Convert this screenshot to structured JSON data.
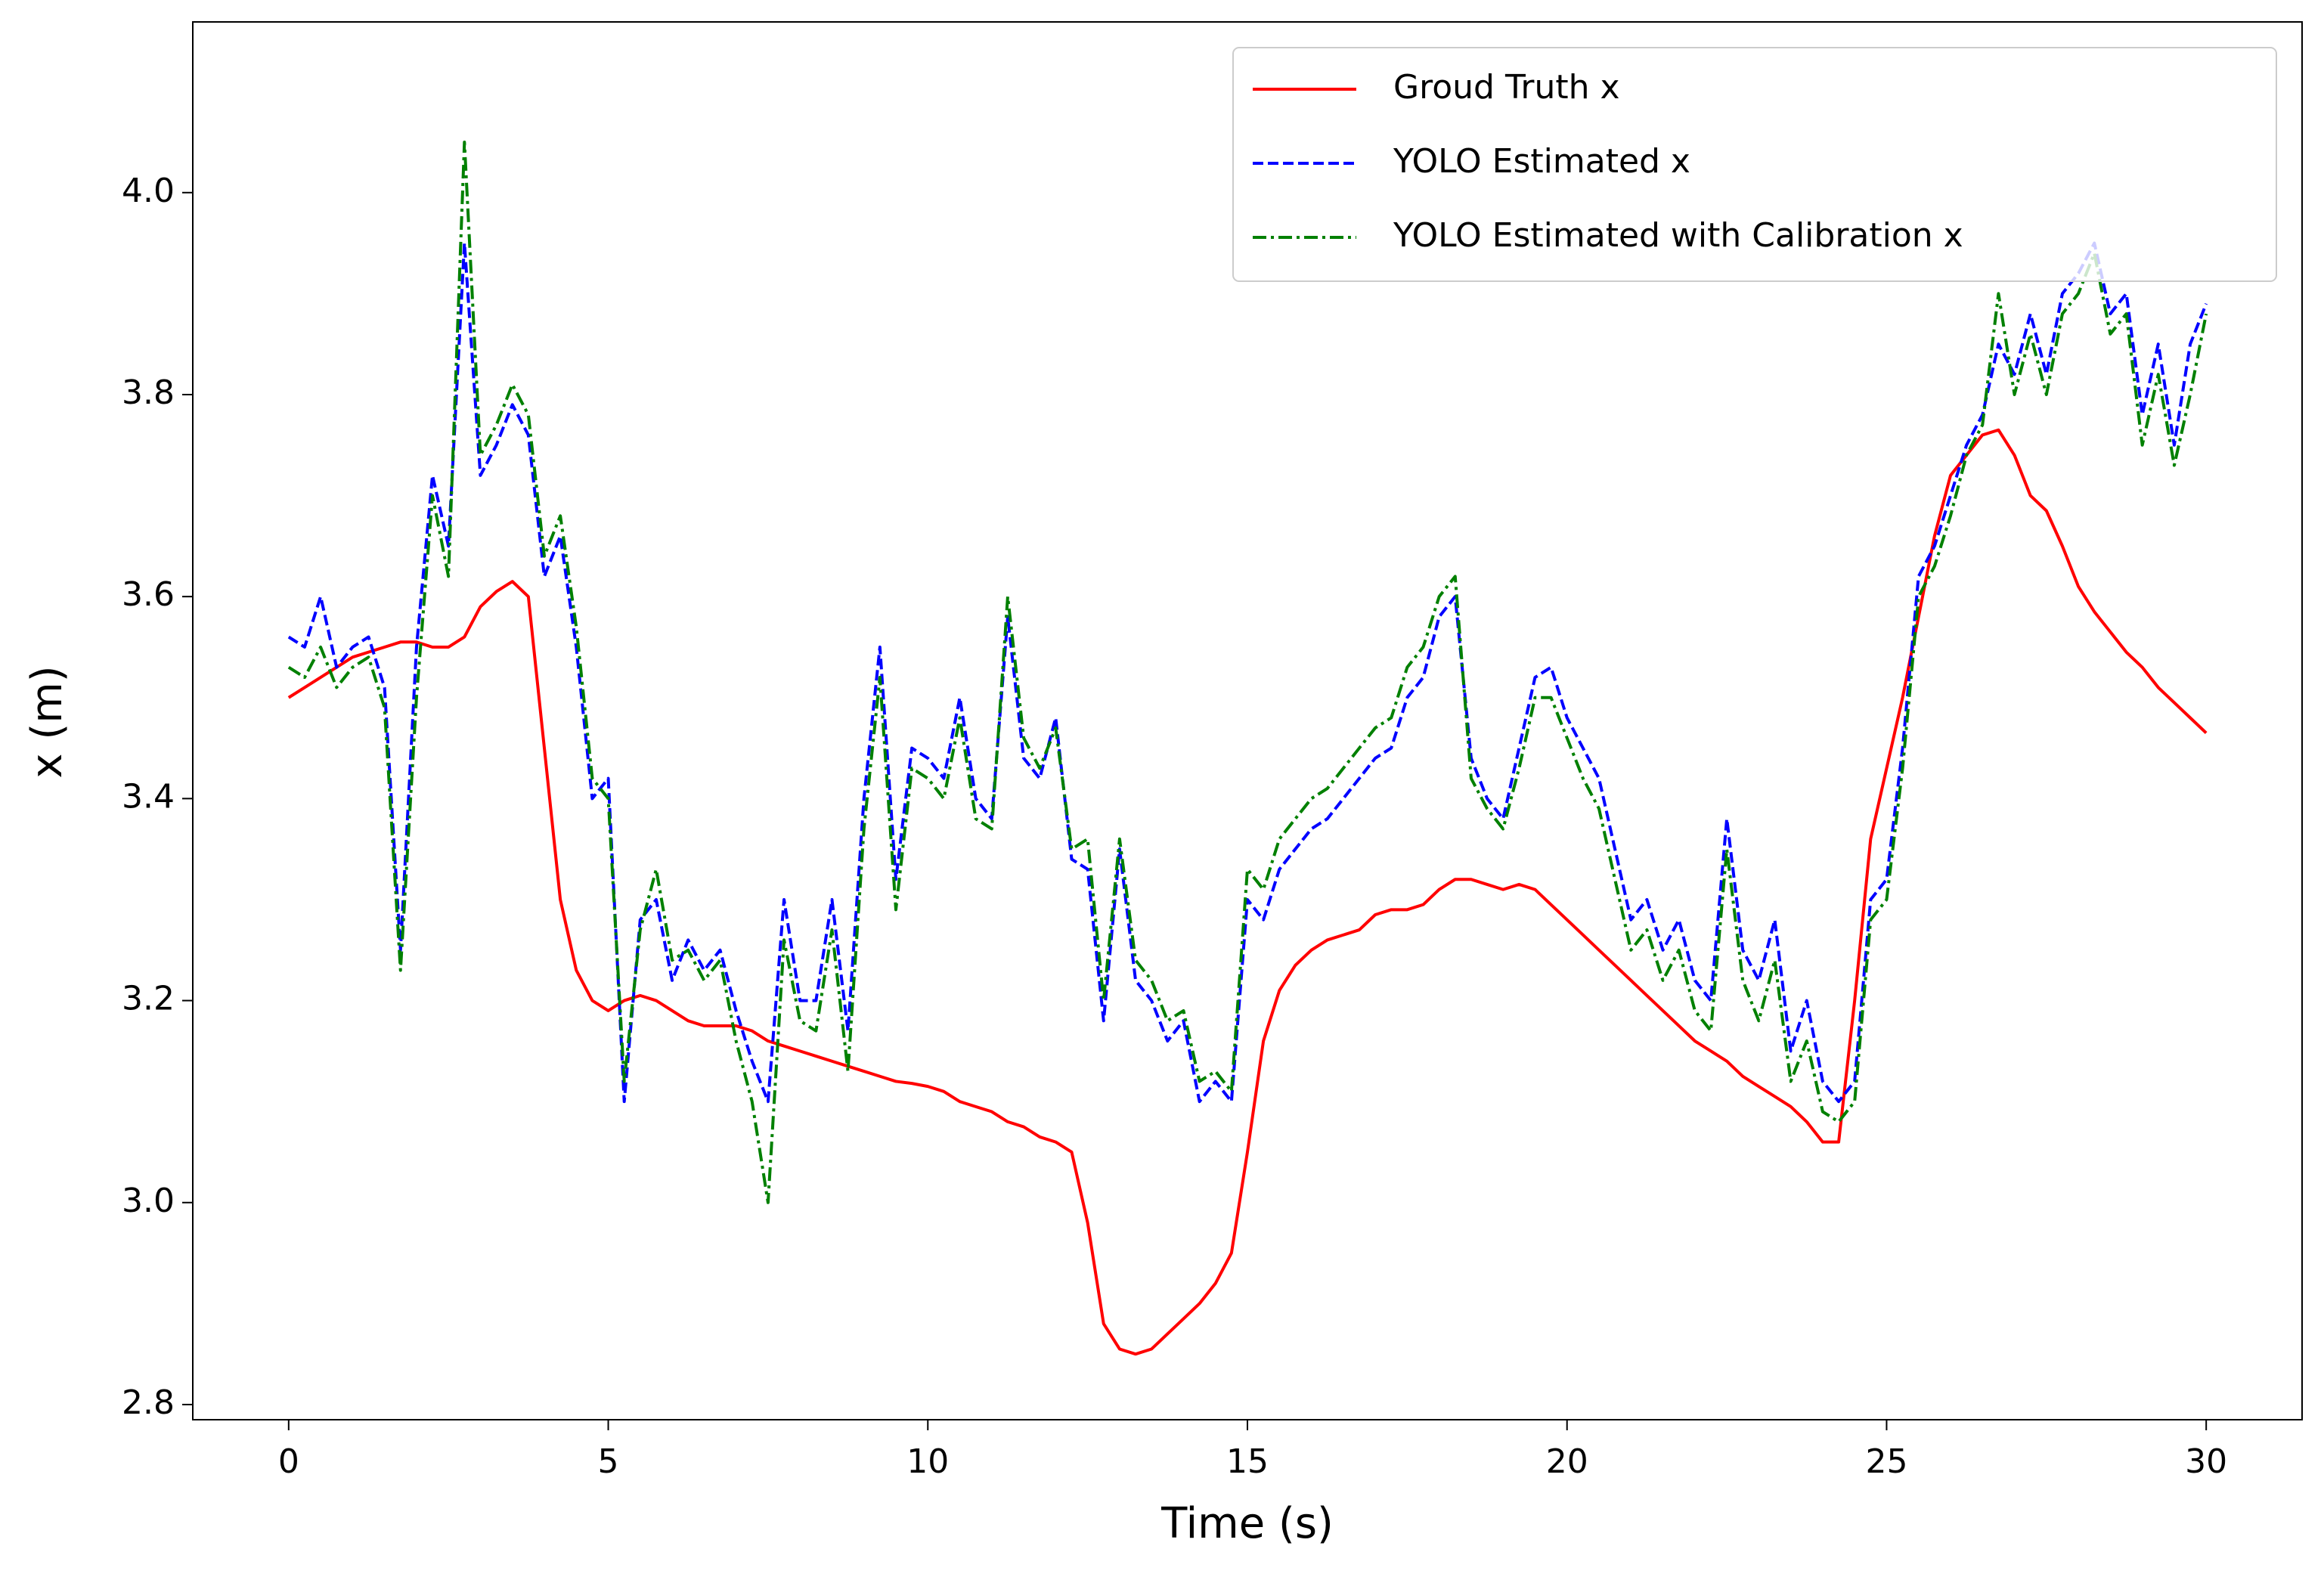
{
  "chart_data": {
    "type": "line",
    "xlabel": "Time (s)",
    "ylabel": "x (m)",
    "x": [
      0,
      0.25,
      0.5,
      0.75,
      1,
      1.25,
      1.5,
      1.75,
      2,
      2.25,
      2.5,
      2.75,
      3,
      3.25,
      3.5,
      3.75,
      4,
      4.25,
      4.5,
      4.75,
      5,
      5.25,
      5.5,
      5.75,
      6,
      6.25,
      6.5,
      6.75,
      7,
      7.25,
      7.5,
      7.75,
      8,
      8.25,
      8.5,
      8.75,
      9,
      9.25,
      9.5,
      9.75,
      10,
      10.25,
      10.5,
      10.75,
      11,
      11.25,
      11.5,
      11.75,
      12,
      12.25,
      12.5,
      12.75,
      13,
      13.25,
      13.5,
      13.75,
      14,
      14.25,
      14.5,
      14.75,
      15,
      15.25,
      15.5,
      15.75,
      16,
      16.25,
      16.5,
      16.75,
      17,
      17.25,
      17.5,
      17.75,
      18,
      18.25,
      18.5,
      18.75,
      19,
      19.25,
      19.5,
      19.75,
      20,
      20.25,
      20.5,
      20.75,
      21,
      21.25,
      21.5,
      21.75,
      22,
      22.25,
      22.5,
      22.75,
      23,
      23.25,
      23.5,
      23.75,
      24,
      24.25,
      24.5,
      24.75,
      25,
      25.25,
      25.5,
      25.75,
      26,
      26.25,
      26.5,
      26.75,
      27,
      27.25,
      27.5,
      27.75,
      28,
      28.25,
      28.5,
      28.75,
      29,
      29.25,
      29.5,
      29.75,
      30
    ],
    "series": [
      {
        "name": "Groud Truth x",
        "color": "#ff0000",
        "linestyle": "solid",
        "values": [
          3.5,
          3.51,
          3.52,
          3.53,
          3.54,
          3.545,
          3.55,
          3.555,
          3.555,
          3.55,
          3.55,
          3.56,
          3.59,
          3.605,
          3.615,
          3.6,
          3.45,
          3.3,
          3.23,
          3.2,
          3.19,
          3.2,
          3.205,
          3.2,
          3.19,
          3.18,
          3.175,
          3.175,
          3.175,
          3.17,
          3.16,
          3.155,
          3.15,
          3.145,
          3.14,
          3.135,
          3.13,
          3.125,
          3.12,
          3.118,
          3.115,
          3.11,
          3.1,
          3.095,
          3.09,
          3.08,
          3.075,
          3.065,
          3.06,
          3.05,
          2.98,
          2.88,
          2.855,
          2.85,
          2.855,
          2.87,
          2.885,
          2.9,
          2.92,
          2.95,
          3.05,
          3.16,
          3.21,
          3.235,
          3.25,
          3.26,
          3.265,
          3.27,
          3.285,
          3.29,
          3.29,
          3.295,
          3.31,
          3.32,
          3.32,
          3.315,
          3.31,
          3.315,
          3.31,
          3.295,
          3.28,
          3.265,
          3.25,
          3.235,
          3.22,
          3.205,
          3.19,
          3.175,
          3.16,
          3.15,
          3.14,
          3.125,
          3.115,
          3.105,
          3.095,
          3.08,
          3.06,
          3.06,
          3.2,
          3.36,
          3.43,
          3.5,
          3.58,
          3.66,
          3.72,
          3.74,
          3.76,
          3.765,
          3.74,
          3.7,
          3.685,
          3.65,
          3.61,
          3.585,
          3.565,
          3.545,
          3.53,
          3.51,
          3.495,
          3.48,
          3.465
        ]
      },
      {
        "name": "YOLO Estimated x",
        "color": "#0000ff",
        "linestyle": "dashed",
        "values": [
          3.56,
          3.55,
          3.6,
          3.53,
          3.55,
          3.56,
          3.51,
          3.25,
          3.55,
          3.72,
          3.65,
          3.95,
          3.72,
          3.75,
          3.79,
          3.76,
          3.62,
          3.66,
          3.55,
          3.4,
          3.42,
          3.1,
          3.28,
          3.3,
          3.22,
          3.26,
          3.23,
          3.25,
          3.19,
          3.14,
          3.1,
          3.3,
          3.2,
          3.2,
          3.3,
          3.17,
          3.4,
          3.55,
          3.32,
          3.45,
          3.44,
          3.42,
          3.5,
          3.4,
          3.38,
          3.58,
          3.44,
          3.42,
          3.48,
          3.34,
          3.33,
          3.18,
          3.35,
          3.22,
          3.2,
          3.16,
          3.18,
          3.1,
          3.12,
          3.1,
          3.3,
          3.28,
          3.33,
          3.35,
          3.37,
          3.38,
          3.4,
          3.42,
          3.44,
          3.45,
          3.5,
          3.52,
          3.58,
          3.6,
          3.44,
          3.4,
          3.38,
          3.45,
          3.52,
          3.53,
          3.48,
          3.45,
          3.42,
          3.35,
          3.28,
          3.3,
          3.25,
          3.28,
          3.22,
          3.2,
          3.38,
          3.25,
          3.22,
          3.28,
          3.15,
          3.2,
          3.12,
          3.1,
          3.12,
          3.3,
          3.32,
          3.45,
          3.62,
          3.65,
          3.7,
          3.75,
          3.78,
          3.85,
          3.82,
          3.88,
          3.82,
          3.9,
          3.92,
          3.95,
          3.88,
          3.9,
          3.78,
          3.85,
          3.75,
          3.85,
          3.89
        ]
      },
      {
        "name": "YOLO Estimated with Calibration x",
        "color": "#008000",
        "linestyle": "dashdot",
        "values": [
          3.53,
          3.52,
          3.55,
          3.51,
          3.53,
          3.54,
          3.49,
          3.23,
          3.5,
          3.7,
          3.62,
          4.05,
          3.74,
          3.77,
          3.81,
          3.78,
          3.64,
          3.68,
          3.57,
          3.42,
          3.4,
          3.12,
          3.27,
          3.33,
          3.24,
          3.25,
          3.22,
          3.24,
          3.16,
          3.1,
          3.0,
          3.26,
          3.18,
          3.17,
          3.27,
          3.13,
          3.37,
          3.52,
          3.29,
          3.43,
          3.42,
          3.4,
          3.48,
          3.38,
          3.37,
          3.6,
          3.46,
          3.43,
          3.47,
          3.35,
          3.36,
          3.2,
          3.36,
          3.24,
          3.22,
          3.18,
          3.19,
          3.12,
          3.13,
          3.11,
          3.33,
          3.31,
          3.36,
          3.38,
          3.4,
          3.41,
          3.43,
          3.45,
          3.47,
          3.48,
          3.53,
          3.55,
          3.6,
          3.62,
          3.42,
          3.39,
          3.37,
          3.43,
          3.5,
          3.5,
          3.46,
          3.42,
          3.39,
          3.32,
          3.25,
          3.27,
          3.22,
          3.25,
          3.19,
          3.17,
          3.35,
          3.22,
          3.18,
          3.24,
          3.12,
          3.16,
          3.09,
          3.08,
          3.1,
          3.28,
          3.3,
          3.43,
          3.6,
          3.63,
          3.68,
          3.74,
          3.77,
          3.9,
          3.8,
          3.86,
          3.8,
          3.88,
          3.9,
          3.94,
          3.86,
          3.88,
          3.75,
          3.82,
          3.73,
          3.8,
          3.88
        ]
      }
    ],
    "xlim": [
      -1.5,
      31.5
    ],
    "ylim": [
      2.785,
      4.169
    ],
    "xticks": [
      0,
      5,
      10,
      15,
      20,
      25,
      30
    ],
    "yticks": [
      2.8,
      {
        "value": 3,
        "label": "3.0"
      },
      3.2,
      3.4,
      3.6,
      3.8,
      {
        "value": 4,
        "label": "4.0"
      }
    ],
    "grid": false,
    "legend": "upper right"
  }
}
